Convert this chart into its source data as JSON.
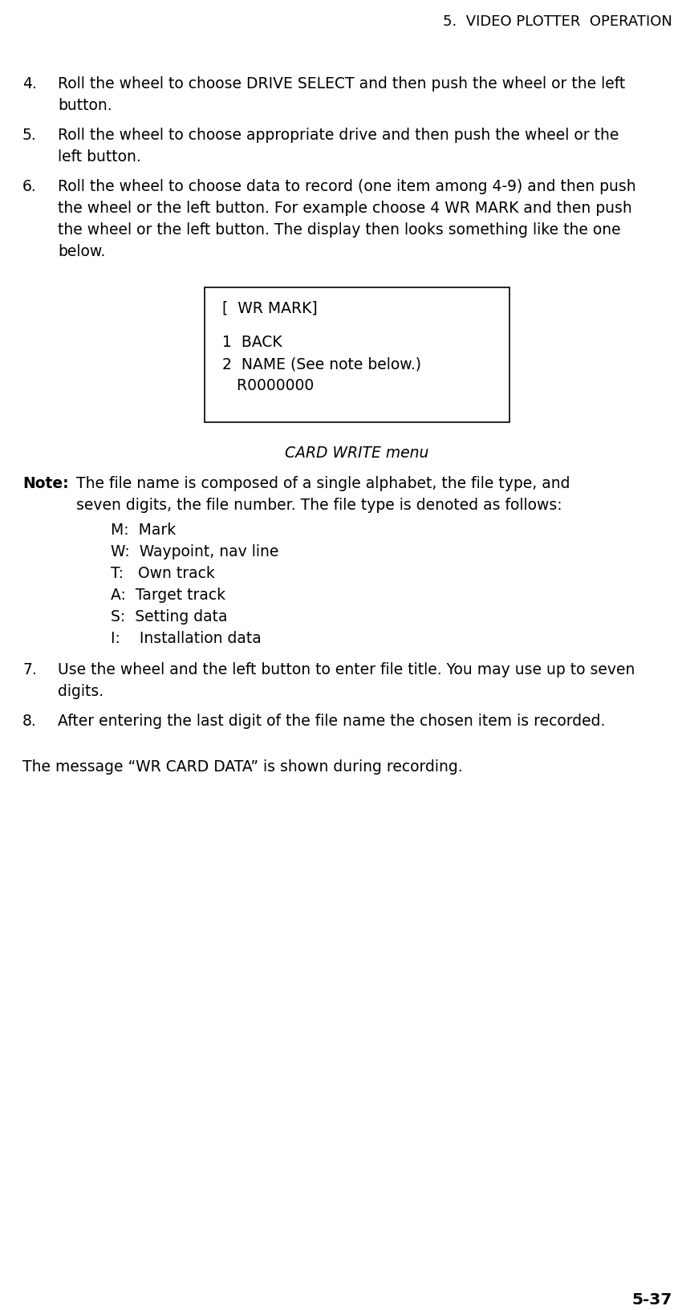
{
  "header": "5.  VIDEO PLOTTER  OPERATION",
  "background_color": "#ffffff",
  "text_color": "#000000",
  "page_number": "5-37",
  "items": [
    {
      "num": "4.",
      "text": "Roll the wheel to choose DRIVE SELECT and then push the wheel or the left\nbutton."
    },
    {
      "num": "5.",
      "text": "Roll the wheel to choose appropriate drive and then push the wheel or the\nleft button."
    },
    {
      "num": "6.",
      "text": "Roll the wheel to choose data to record (one item among 4-9) and then push\nthe wheel or the left button. For example choose 4 WR MARK and then push\nthe wheel or the left button. The display then looks something like the one\nbelow."
    }
  ],
  "box_title": "[  WR MARK]",
  "box_lines": [
    "1  BACK",
    "2  NAME (See note below.)",
    "   R0000000"
  ],
  "box_caption": "CARD WRITE menu",
  "note_label": "Note:",
  "note_text": "The file name is composed of a single alphabet, the file type, and\nseven digits, the file number. The file type is denoted as follows:",
  "note_items": [
    "M:  Mark",
    "W:  Waypoint, nav line",
    "T:   Own track",
    "A:  Target track",
    "S:  Setting data",
    "I:    Installation data"
  ],
  "steps_after": [
    {
      "num": "7.",
      "text": "Use the wheel and the left button to enter file title. You may use up to seven\ndigits."
    },
    {
      "num": "8.",
      "text": "After entering the last digit of the file name the chosen item is recorded."
    }
  ],
  "footer_text": "The message “WR CARD DATA” is shown during recording."
}
